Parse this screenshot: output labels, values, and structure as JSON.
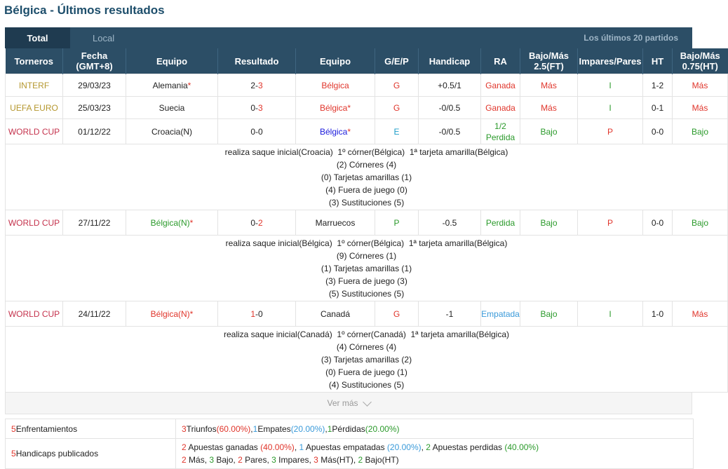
{
  "page_title": "Bélgica - Últimos resultados",
  "tabs": {
    "total": "Total",
    "local": "Local",
    "last20": "Los últimos 20 partidos"
  },
  "headers": [
    "Torneros",
    "Fecha\n(GMT+8)",
    "Equipo",
    "Resultado",
    "Equipo",
    "G/E/P",
    "Handicap",
    "RA",
    "Bajo/Más\n2.5(FT)",
    "Impares/Pares",
    "HT",
    "Bajo/Más\n0.75(HT)"
  ],
  "matches": [
    {
      "tournament": "INTERF",
      "date": "29/03/23",
      "home": "Alemania",
      "home_star": "*",
      "score_h": "2",
      "score_sep": "-",
      "score_a": "3",
      "away": "Bélgica",
      "away_star": "",
      "gep": "G",
      "handicap": "+0.5/1",
      "ra": "Ganada",
      "ra2": "",
      "ou25": "Más",
      "oddeven": "I",
      "ht": "1-2",
      "ou075": "Más"
    },
    {
      "tournament": "UEFA EURO",
      "date": "25/03/23",
      "home": "Suecia",
      "home_star": "",
      "score_h": "0",
      "score_sep": "-",
      "score_a": "3",
      "away": "Bélgica",
      "away_star": "*",
      "gep": "G",
      "handicap": "-0/0.5",
      "ra": "Ganada",
      "ra2": "",
      "ou25": "Más",
      "oddeven": "I",
      "ht": "0-1",
      "ou075": "Más"
    },
    {
      "tournament": "WORLD CUP",
      "date": "01/12/22",
      "home": "Croacia(N)",
      "home_star": "",
      "score_h": "0",
      "score_sep": "-",
      "score_a": "0",
      "away": "Bélgica",
      "away_star": "*",
      "gep": "E",
      "handicap": "-0/0.5",
      "ra": "1/2",
      "ra2": "Perdida",
      "ou25": "Bajo",
      "oddeven": "P",
      "ht": "0-0",
      "ou075": "Bajo",
      "details": [
        "realiza saque inicial(Croacia)  1º córner(Bélgica)  1ª tarjeta amarilla(Bélgica)",
        "(2) Córneres (4)",
        "(0) Tarjetas amarillas (1)",
        "(4) Fuera de juego (0)",
        "(3) Sustituciones (5)"
      ]
    },
    {
      "tournament": "WORLD CUP",
      "date": "27/11/22",
      "home": "Bélgica(N)",
      "home_star": "*",
      "score_h": "0",
      "score_sep": "-",
      "score_a": "2",
      "away": "Marruecos",
      "away_star": "",
      "gep": "P",
      "handicap": "-0.5",
      "ra": "Perdida",
      "ra2": "",
      "ou25": "Bajo",
      "oddeven": "P",
      "ht": "0-0",
      "ou075": "Bajo",
      "details": [
        "realiza saque inicial(Bélgica)  1º córner(Bélgica)  1ª tarjeta amarilla(Bélgica)",
        "(9) Córneres (1)",
        "(1) Tarjetas amarillas (1)",
        "(3) Fuera de juego (3)",
        "(5) Sustituciones (5)"
      ]
    },
    {
      "tournament": "WORLD CUP",
      "date": "24/11/22",
      "home": "Bélgica(N)",
      "home_star": "*",
      "score_h": "1",
      "score_sep": "-",
      "score_a": "0",
      "away": "Canadá",
      "away_star": "",
      "gep": "G",
      "handicap": "-1",
      "ra": "Empatada",
      "ra2": "",
      "ou25": "Bajo",
      "oddeven": "I",
      "ht": "1-0",
      "ou075": "Más",
      "details": [
        "realiza saque inicial(Canadá)  1º córner(Canadá)  1ª tarjeta amarilla(Bélgica)",
        "(4) Córneres (4)",
        "(3) Tarjetas amarillas (2)",
        "(0) Fuera de juego (1)",
        "(4) Sustituciones (5)"
      ]
    }
  ],
  "more_label": "Ver más",
  "summary": {
    "row1_label_n": "5",
    "row1_label": " Enfrentamientos",
    "row1": [
      [
        "3",
        "red"
      ],
      [
        " Triunfos ",
        "dark"
      ],
      [
        "(60.00%)",
        "red"
      ],
      [
        ", ",
        "dark"
      ],
      [
        "1",
        "teal"
      ],
      [
        " Empates ",
        "dark"
      ],
      [
        "(20.00%)",
        "teal"
      ],
      [
        ", ",
        "dark"
      ],
      [
        "1",
        "green"
      ],
      [
        " Pérdidas ",
        "dark"
      ],
      [
        "(20.00%)",
        "green"
      ]
    ],
    "row2_label_n": "5",
    "row2_label": " Handicaps publicados",
    "row2a": [
      [
        "2",
        "red"
      ],
      [
        " Apuestas ganadas ",
        "dark"
      ],
      [
        "(40.00%)",
        "red"
      ],
      [
        ", ",
        "dark"
      ],
      [
        "1",
        "teal"
      ],
      [
        " Apuestas empatadas ",
        "dark"
      ],
      [
        "(20.00%)",
        "teal"
      ],
      [
        ", ",
        "dark"
      ],
      [
        "2",
        "green"
      ],
      [
        " Apuestas perdidas ",
        "dark"
      ],
      [
        "(40.00%)",
        "green"
      ]
    ],
    "row2b": [
      [
        "2",
        "red"
      ],
      [
        " Más, ",
        "dark"
      ],
      [
        "3",
        "green"
      ],
      [
        " Bajo, ",
        "dark"
      ],
      [
        "2",
        "red"
      ],
      [
        " Pares, ",
        "dark"
      ],
      [
        "3",
        "green"
      ],
      [
        " Impares, ",
        "dark"
      ],
      [
        "3",
        "red"
      ],
      [
        " Más(HT), ",
        "dark"
      ],
      [
        "2",
        "green"
      ],
      [
        " Bajo(HT)",
        "dark"
      ]
    ]
  },
  "colors": {
    "header_bg": "#2c4e66",
    "title": "#1d4e6b",
    "win": "#e0352b",
    "draw": "#3a9ad9",
    "loss": "#2b9a2b"
  }
}
